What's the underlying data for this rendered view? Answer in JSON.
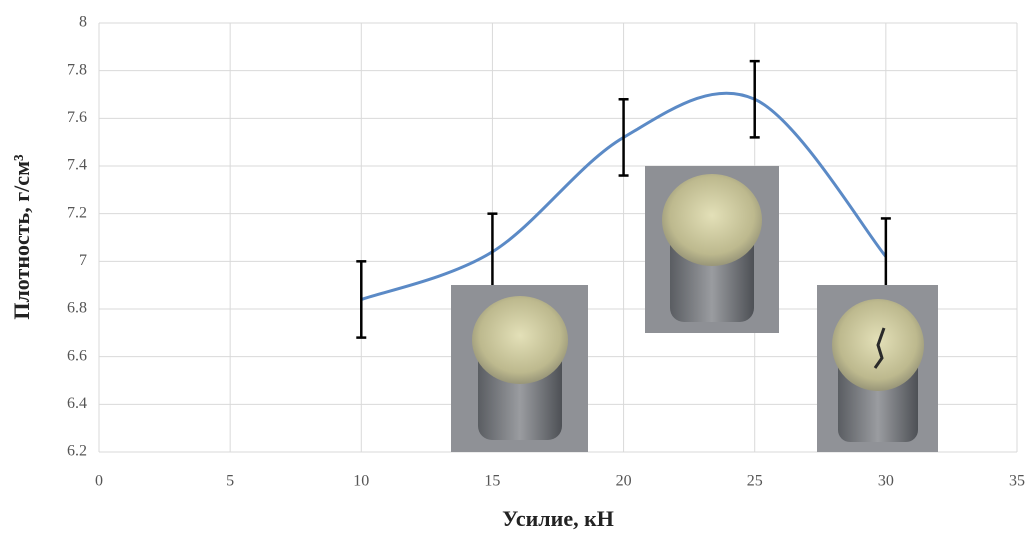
{
  "chart_data": {
    "type": "line",
    "x_label": "Усилие, кН",
    "y_label": "Плотность, г/см³",
    "x": [
      10,
      15,
      20,
      25,
      30
    ],
    "values": [
      6.84,
      7.04,
      7.52,
      7.68,
      7.02
    ],
    "errors": [
      0.16,
      0.16,
      0.16,
      0.16,
      0.16
    ],
    "color": "#5b8ac6",
    "error_color": "#000000",
    "smooth": true,
    "xlim": [
      0,
      35
    ],
    "xticks": [
      0,
      5,
      10,
      15,
      20,
      25,
      30,
      35
    ],
    "ylim": [
      6.2,
      8
    ],
    "yticks": [
      6.2,
      6.4,
      6.6,
      6.8,
      7,
      7.2,
      7.4,
      7.6,
      7.8,
      8
    ],
    "grid": true
  }
}
